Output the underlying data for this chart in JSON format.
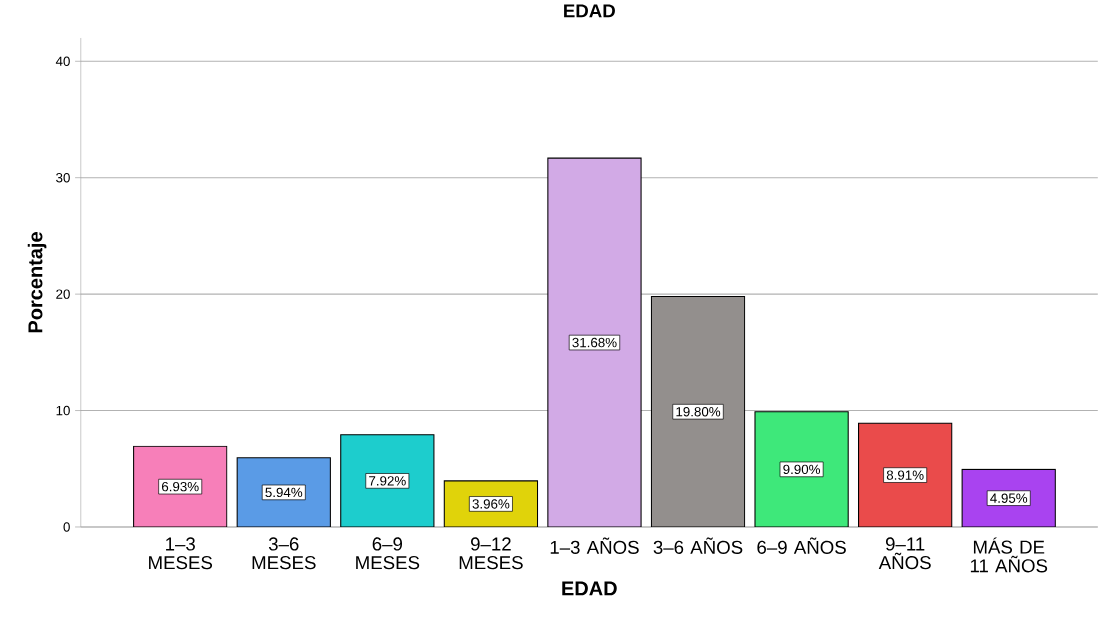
{
  "chart_data": {
    "type": "bar",
    "title": "EDAD",
    "xlabel": "EDAD",
    "ylabel": "Porcentaje",
    "categories": [
      "1–3 MESES",
      "3–6 MESES",
      "6–9 MESES",
      "9–12 MESES",
      "1–3 AÑOS",
      "3–6 AÑOS",
      "6–9 AÑOS",
      "9–11 AÑOS",
      "MÁS DE 11 AÑOS"
    ],
    "values": [
      6.93,
      5.94,
      7.92,
      3.96,
      31.68,
      19.8,
      9.9,
      8.91,
      4.95
    ],
    "value_labels": [
      "6.93%",
      "5.94%",
      "7.92%",
      "3.96%",
      "31.68%",
      "19.80%",
      "9.90%",
      "8.91%",
      "4.95%"
    ],
    "colors": [
      "#f77fb9",
      "#5a9be6",
      "#1dcdcd",
      "#e0d30a",
      "#d2aae6",
      "#938f8d",
      "#3ee87a",
      "#ea4b4b",
      "#a943f0"
    ],
    "ylim": [
      0,
      42
    ],
    "yticks": [
      0,
      10,
      20,
      30,
      40
    ],
    "grid": "y"
  }
}
